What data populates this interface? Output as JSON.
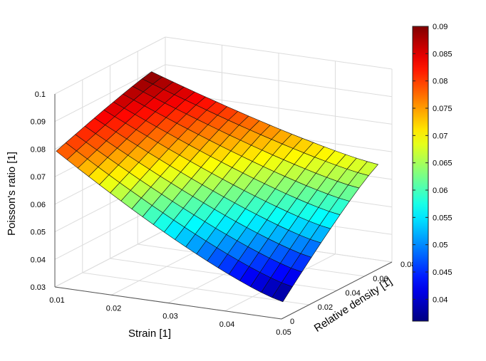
{
  "chart_data": {
    "type": "surface3d",
    "title": "",
    "xlabel": "Strain [1]",
    "ylabel": "Relative density [1]",
    "zlabel": "Poisson's ratio [1]",
    "xlim": [
      0.01,
      0.05
    ],
    "ylim": [
      0,
      0.08
    ],
    "zlim": [
      0.03,
      0.1
    ],
    "x_ticks": [
      "0.01",
      "0.02",
      "0.03",
      "0.04",
      "0.05"
    ],
    "y_ticks": [
      "0",
      "0.02",
      "0.04",
      "0.06",
      "0.08"
    ],
    "z_ticks": [
      "0.03",
      "0.04",
      "0.05",
      "0.06",
      "0.07",
      "0.08",
      "0.09",
      "0.1"
    ],
    "grid": true,
    "colormap": "jet",
    "colorbar": {
      "range": [
        0.036,
        0.09
      ],
      "ticks": [
        "0.04",
        "0.045",
        "0.05",
        "0.055",
        "0.06",
        "0.065",
        "0.07",
        "0.075",
        "0.08",
        "0.085",
        "0.09"
      ],
      "placement": "right"
    },
    "surface": {
      "x_range": [
        0.01,
        0.05
      ],
      "y_range": [
        0.001,
        0.07
      ],
      "x_samples": 22,
      "y_samples": 11,
      "corner_values": {
        "x_min_y_min": 0.079,
        "x_min_y_max": 0.09,
        "x_max_y_min": 0.036,
        "x_max_y_max": 0.068
      }
    }
  }
}
